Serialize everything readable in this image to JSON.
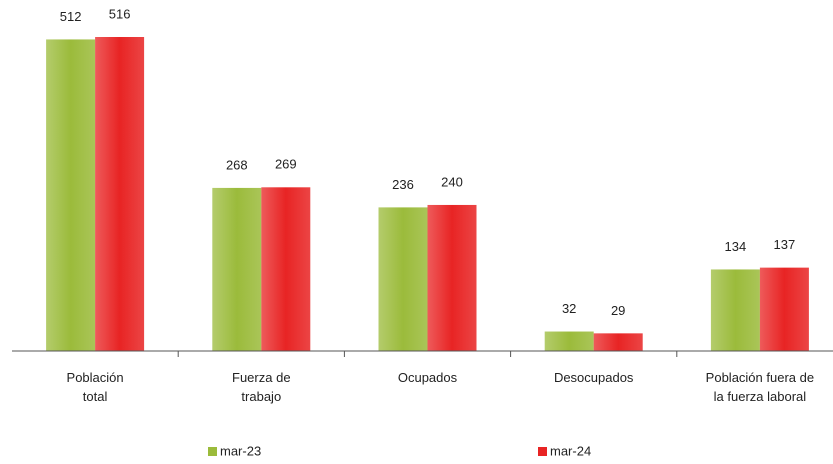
{
  "chart_data": {
    "type": "bar",
    "categories": [
      "Población\ntotal",
      "Fuerza de\ntrabajo",
      "Ocupados",
      "Desocupados",
      "Población fuera de\nla fuerza laboral"
    ],
    "series": [
      {
        "name": "mar-23",
        "color": "#9bbb3b",
        "values": [
          512,
          268,
          236,
          32,
          134
        ]
      },
      {
        "name": "mar-24",
        "color": "#e82424",
        "values": [
          516,
          269,
          240,
          29,
          137
        ]
      }
    ]
  }
}
